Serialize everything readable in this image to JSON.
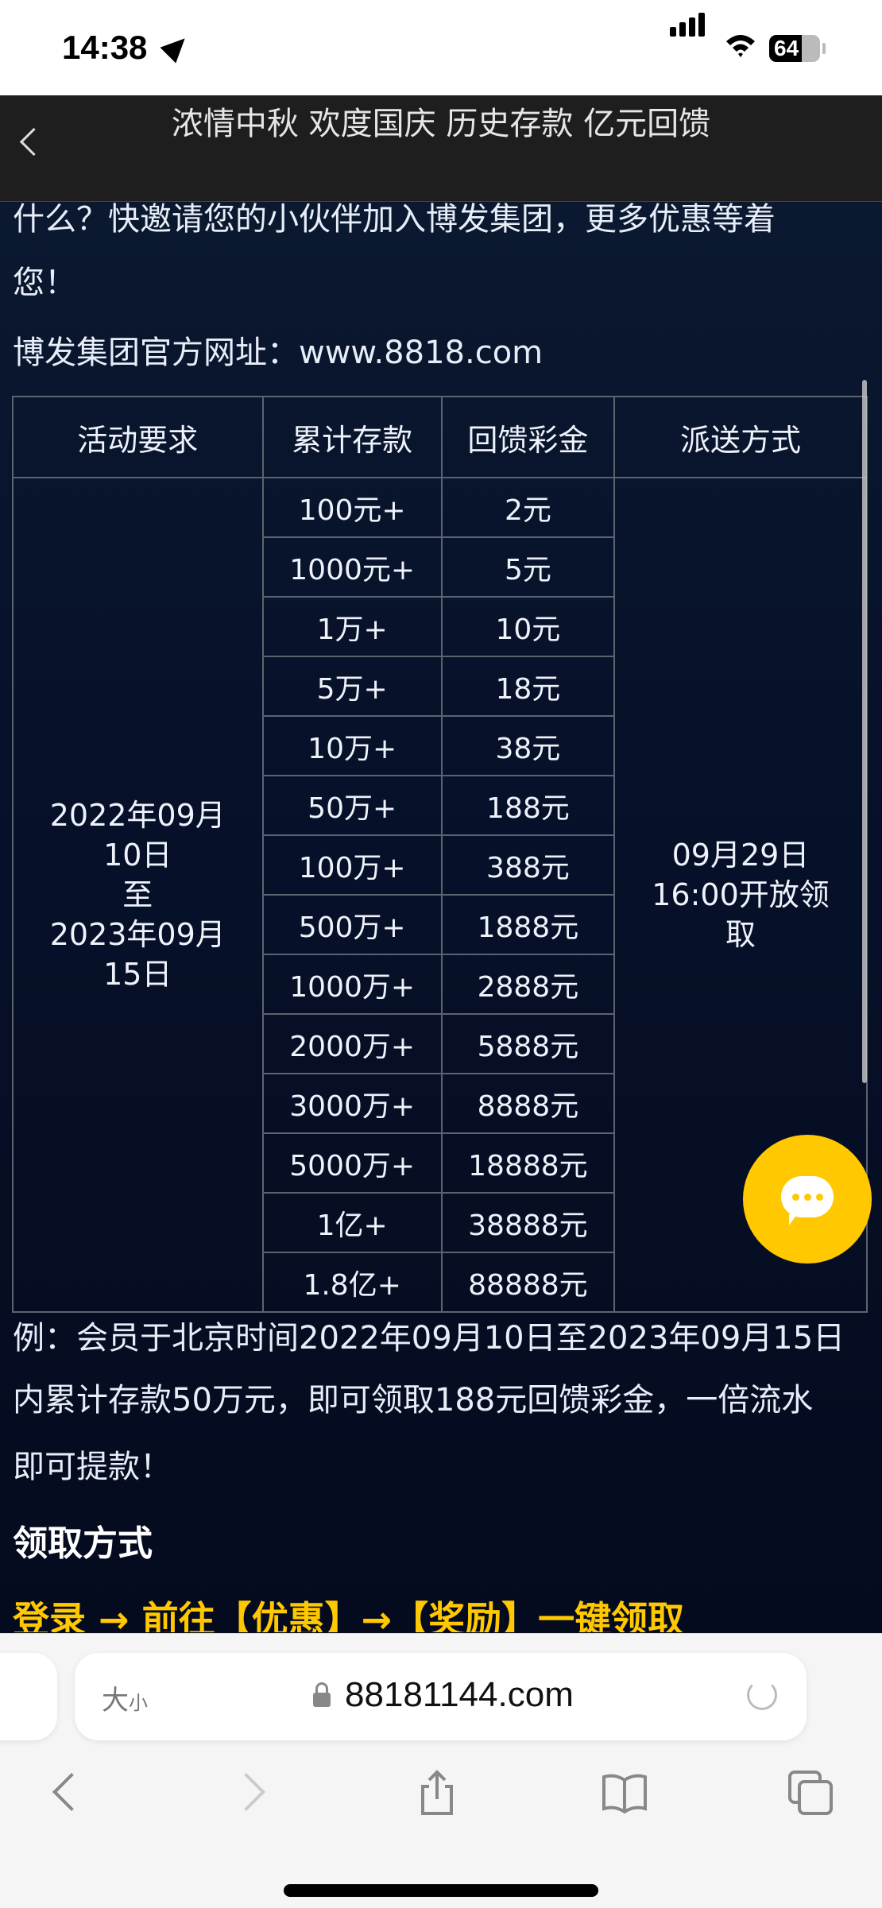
{
  "status_bar": {
    "time": "14:38",
    "battery": "64"
  },
  "nav": {
    "title": "浓情中秋 欢度国庆 历史存款 亿元回馈"
  },
  "content": {
    "intro_line1": "什么？快邀请您的小伙伴加入博发集团，更多优惠等着",
    "intro_line2": "您！",
    "website": "博发集团官方网址：www.8818.com",
    "table": {
      "headers": [
        "活动要求",
        "累计存款",
        "回馈彩金",
        "派送方式"
      ],
      "period": [
        "2022年09月",
        "10日",
        "至",
        "2023年09月",
        "15日"
      ],
      "delivery": [
        "09月29日",
        "16:00开放领",
        "取"
      ],
      "rows": [
        [
          "100元+",
          "2元"
        ],
        [
          "1000元+",
          "5元"
        ],
        [
          "1万+",
          "10元"
        ],
        [
          "5万+",
          "18元"
        ],
        [
          "10万+",
          "38元"
        ],
        [
          "50万+",
          "188元"
        ],
        [
          "100万+",
          "388元"
        ],
        [
          "500万+",
          "1888元"
        ],
        [
          "1000万+",
          "2888元"
        ],
        [
          "2000万+",
          "5888元"
        ],
        [
          "3000万+",
          "8888元"
        ],
        [
          "5000万+",
          "18888元"
        ],
        [
          "1亿+",
          "38888元"
        ],
        [
          "1.8亿+",
          "88888元"
        ]
      ]
    },
    "example_line1": "例：会员于北京时间2022年09月10日至2023年09月15日",
    "example_line2": "内累计存款50万元，即可领取188元回馈彩金，一倍流水",
    "example_line3": "即可提款！",
    "claim_heading": "领取方式",
    "claim_steps": "登录 → 前往【优惠】→【奖励】一键领取"
  },
  "browser": {
    "text_size": "大",
    "text_size_small": "小",
    "url": "88181144.com"
  },
  "colors": {
    "accent": "#ffc800",
    "background": "#061028"
  }
}
